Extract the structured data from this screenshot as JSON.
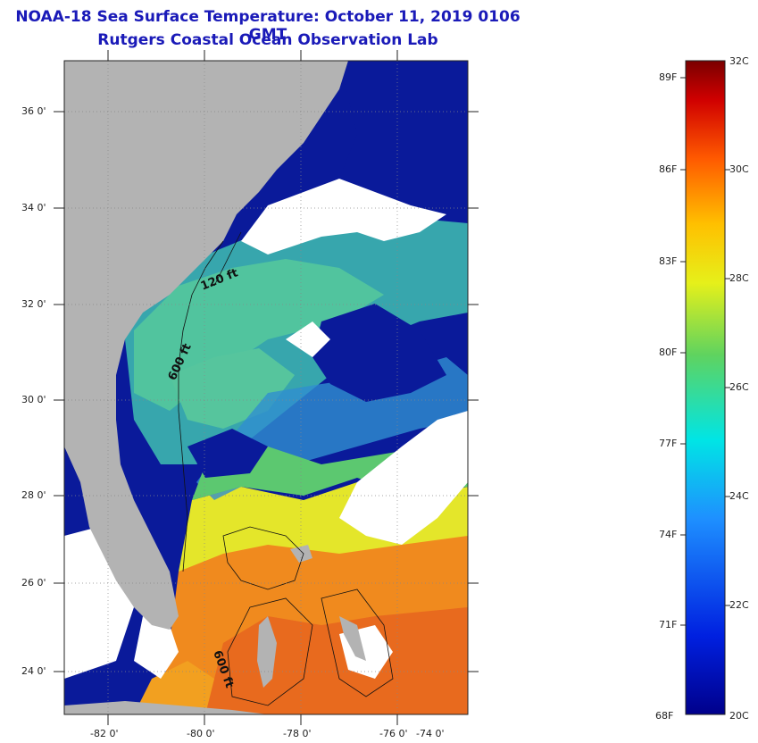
{
  "title": {
    "line1": "NOAA-18 Sea Surface Temperature:  October 11, 2019 0106 GMT",
    "line2": "Rutgers Coastal Ocean Observation Lab"
  },
  "map": {
    "lat_labels": [
      "36 0'",
      "34 0'",
      "32 0'",
      "30 0'",
      "28 0'",
      "26 0'",
      "24 0'"
    ],
    "lon_labels": [
      "-82 0'",
      "-80 0'",
      "-78 0'",
      "-76 0'",
      "-74 0'"
    ],
    "contour_labels": [
      "120 ft",
      "600 ft",
      "600 ft"
    ],
    "colors": {
      "land": "#b3b3b3",
      "cloud": "#ffffff",
      "deep_blue": "#0a1a9a",
      "cyan": "#29c9c9",
      "green": "#66cc66",
      "yellow": "#e4e62a",
      "orange": "#f08a1e",
      "red": "#e4521e"
    }
  },
  "colorbar": {
    "fahrenheit_labels": [
      "89F",
      "86F",
      "83F",
      "80F",
      "77F",
      "74F",
      "71F",
      "68F"
    ],
    "celsius_labels": [
      "32C",
      "30C",
      "28C",
      "26C",
      "24C",
      "22C",
      "20C"
    ]
  }
}
